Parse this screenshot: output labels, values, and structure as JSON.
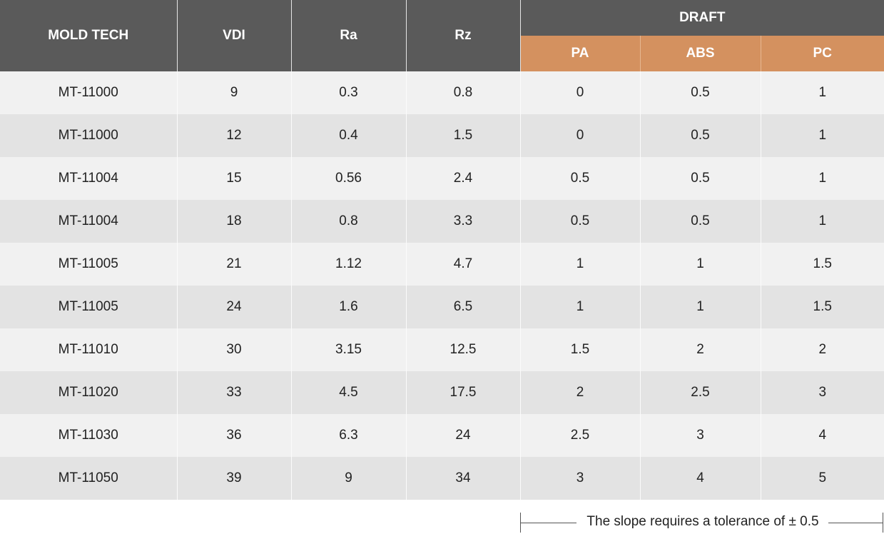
{
  "table": {
    "headers": {
      "mold_tech": "MOLD TECH",
      "vdi": "VDI",
      "ra": "Ra",
      "rz": "Rz",
      "draft": "DRAFT",
      "pa": "PA",
      "abs": "ABS",
      "pc": "PC"
    },
    "rows": [
      [
        "MT-11000",
        "9",
        "0.3",
        "0.8",
        "0",
        "0.5",
        "1"
      ],
      [
        "MT-11000",
        "12",
        "0.4",
        "1.5",
        "0",
        "0.5",
        "1"
      ],
      [
        "MT-11004",
        "15",
        "0.56",
        "2.4",
        "0.5",
        "0.5",
        "1"
      ],
      [
        "MT-11004",
        "18",
        "0.8",
        "3.3",
        "0.5",
        "0.5",
        "1"
      ],
      [
        "MT-11005",
        "21",
        "1.12",
        "4.7",
        "1",
        "1",
        "1.5"
      ],
      [
        "MT-11005",
        "24",
        "1.6",
        "6.5",
        "1",
        "1",
        "1.5"
      ],
      [
        "MT-11010",
        "30",
        "3.15",
        "12.5",
        "1.5",
        "2",
        "2"
      ],
      [
        "MT-11020",
        "33",
        "4.5",
        "17.5",
        "2",
        "2.5",
        "3"
      ],
      [
        "MT-11030",
        "36",
        "6.3",
        "24",
        "2.5",
        "3",
        "4"
      ],
      [
        "MT-11050",
        "39",
        "9",
        "34",
        "3",
        "4",
        "5"
      ]
    ]
  },
  "note": {
    "text": "The slope requires a tolerance of ± 0.5"
  },
  "colors": {
    "header_dark": "#5a5a5a",
    "header_accent": "#d4915f",
    "row_light": "#f1f1f1",
    "row_dark": "#e3e3e3"
  }
}
